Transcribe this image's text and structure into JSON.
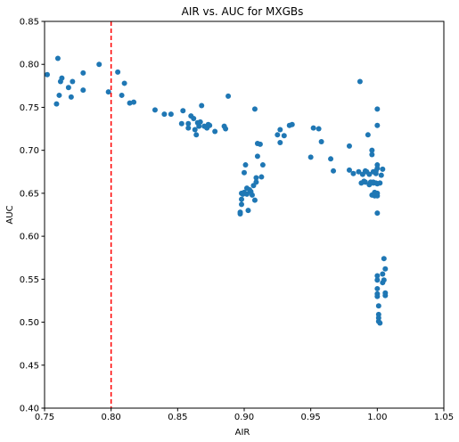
{
  "chart_data": {
    "type": "scatter",
    "title": "AIR vs. AUC for MXGBs",
    "xlabel": "AIR",
    "ylabel": "AUC",
    "xlim": [
      0.75,
      1.05
    ],
    "ylim": [
      0.4,
      0.85
    ],
    "xticks": [
      "0.75",
      "0.80",
      "0.85",
      "0.90",
      "0.95",
      "1.00",
      "1.05"
    ],
    "yticks": [
      "0.40",
      "0.45",
      "0.50",
      "0.55",
      "0.60",
      "0.65",
      "0.70",
      "0.75",
      "0.80",
      "0.85"
    ],
    "grid": false,
    "marker_color": "#1f77b4",
    "reference_line": {
      "x": 0.8,
      "color": "#ff0000",
      "style": "dashed"
    },
    "series": [
      {
        "points": [
          [
            0.752,
            0.788
          ],
          [
            0.759,
            0.754
          ],
          [
            0.76,
            0.807
          ],
          [
            0.761,
            0.764
          ],
          [
            0.762,
            0.78
          ],
          [
            0.763,
            0.784
          ],
          [
            0.768,
            0.773
          ],
          [
            0.77,
            0.762
          ],
          [
            0.771,
            0.78
          ],
          [
            0.779,
            0.79
          ],
          [
            0.779,
            0.77
          ],
          [
            0.791,
            0.8
          ],
          [
            0.798,
            0.768
          ],
          [
            0.805,
            0.791
          ],
          [
            0.808,
            0.764
          ],
          [
            0.81,
            0.778
          ],
          [
            0.814,
            0.755
          ],
          [
            0.817,
            0.756
          ],
          [
            0.833,
            0.747
          ],
          [
            0.84,
            0.742
          ],
          [
            0.845,
            0.742
          ],
          [
            0.853,
            0.731
          ],
          [
            0.854,
            0.746
          ],
          [
            0.858,
            0.726
          ],
          [
            0.858,
            0.731
          ],
          [
            0.86,
            0.74
          ],
          [
            0.862,
            0.737
          ],
          [
            0.863,
            0.724
          ],
          [
            0.864,
            0.718
          ],
          [
            0.865,
            0.732
          ],
          [
            0.866,
            0.728
          ],
          [
            0.867,
            0.733
          ],
          [
            0.868,
            0.752
          ],
          [
            0.87,
            0.728
          ],
          [
            0.872,
            0.726
          ],
          [
            0.873,
            0.73
          ],
          [
            0.874,
            0.729
          ],
          [
            0.878,
            0.722
          ],
          [
            0.885,
            0.728
          ],
          [
            0.886,
            0.725
          ],
          [
            0.888,
            0.763
          ],
          [
            0.897,
            0.626
          ],
          [
            0.897,
            0.628
          ],
          [
            0.898,
            0.637
          ],
          [
            0.898,
            0.643
          ],
          [
            0.898,
            0.65
          ],
          [
            0.899,
            0.649
          ],
          [
            0.9,
            0.651
          ],
          [
            0.9,
            0.674
          ],
          [
            0.901,
            0.683
          ],
          [
            0.902,
            0.656
          ],
          [
            0.902,
            0.649
          ],
          [
            0.903,
            0.63
          ],
          [
            0.904,
            0.654
          ],
          [
            0.905,
            0.652
          ],
          [
            0.906,
            0.648
          ],
          [
            0.907,
            0.659
          ],
          [
            0.908,
            0.642
          ],
          [
            0.908,
            0.748
          ],
          [
            0.909,
            0.668
          ],
          [
            0.909,
            0.663
          ],
          [
            0.91,
            0.693
          ],
          [
            0.91,
            0.708
          ],
          [
            0.912,
            0.707
          ],
          [
            0.913,
            0.669
          ],
          [
            0.914,
            0.683
          ],
          [
            0.925,
            0.718
          ],
          [
            0.927,
            0.724
          ],
          [
            0.927,
            0.709
          ],
          [
            0.93,
            0.717
          ],
          [
            0.934,
            0.729
          ],
          [
            0.936,
            0.73
          ],
          [
            0.95,
            0.692
          ],
          [
            0.952,
            0.726
          ],
          [
            0.956,
            0.725
          ],
          [
            0.958,
            0.71
          ],
          [
            0.965,
            0.69
          ],
          [
            0.967,
            0.676
          ],
          [
            0.979,
            0.705
          ],
          [
            0.979,
            0.677
          ],
          [
            0.982,
            0.673
          ],
          [
            0.986,
            0.675
          ],
          [
            0.987,
            0.78
          ],
          [
            0.988,
            0.662
          ],
          [
            0.989,
            0.672
          ],
          [
            0.99,
            0.664
          ],
          [
            0.991,
            0.676
          ],
          [
            0.991,
            0.663
          ],
          [
            0.992,
            0.675
          ],
          [
            0.993,
            0.718
          ],
          [
            0.994,
            0.672
          ],
          [
            0.994,
            0.66
          ],
          [
            0.995,
            0.663
          ],
          [
            0.996,
            0.695
          ],
          [
            0.996,
            0.7
          ],
          [
            0.996,
            0.648
          ],
          [
            0.997,
            0.663
          ],
          [
            0.997,
            0.662
          ],
          [
            0.997,
            0.675
          ],
          [
            0.998,
            0.651
          ],
          [
            0.998,
            0.647
          ],
          [
            0.999,
            0.662
          ],
          [
            0.999,
            0.673
          ],
          [
            0.999,
            0.676
          ],
          [
            1.0,
            0.683
          ],
          [
            1.0,
            0.679
          ],
          [
            1.0,
            0.661
          ],
          [
            1.0,
            0.65
          ],
          [
            1.0,
            0.647
          ],
          [
            1.0,
            0.748
          ],
          [
            1.0,
            0.729
          ],
          [
            1.0,
            0.627
          ],
          [
            1.0,
            0.554
          ],
          [
            1.0,
            0.549
          ],
          [
            1.0,
            0.539
          ],
          [
            1.0,
            0.533
          ],
          [
            1.0,
            0.53
          ],
          [
            1.001,
            0.519
          ],
          [
            1.001,
            0.509
          ],
          [
            1.001,
            0.505
          ],
          [
            1.001,
            0.501
          ],
          [
            1.002,
            0.499
          ],
          [
            1.002,
            0.662
          ],
          [
            1.003,
            0.671
          ],
          [
            1.004,
            0.678
          ],
          [
            1.004,
            0.556
          ],
          [
            1.004,
            0.546
          ],
          [
            1.005,
            0.549
          ],
          [
            1.005,
            0.574
          ],
          [
            1.006,
            0.531
          ],
          [
            1.006,
            0.562
          ],
          [
            1.006,
            0.534
          ]
        ]
      }
    ]
  }
}
